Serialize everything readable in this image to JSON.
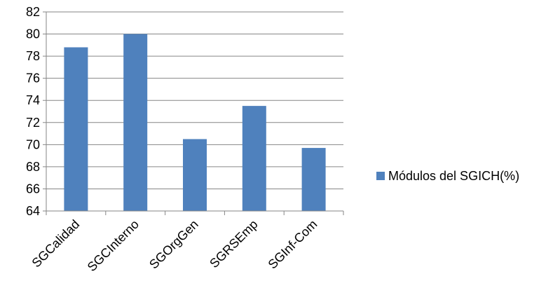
{
  "chart_data": {
    "type": "bar",
    "title": "",
    "xlabel": "",
    "ylabel": "",
    "categories": [
      "SGCalidad",
      "SGCInterno",
      "SGOrgGen",
      "SGRSEmp",
      "SGInf-Com"
    ],
    "series": [
      {
        "name": "Módulos del SGICH(%)",
        "values": [
          78.8,
          80.0,
          70.5,
          73.5,
          69.7
        ],
        "color": "#4F81BD"
      }
    ],
    "ylim": [
      64,
      82
    ],
    "yticks": [
      64,
      66,
      68,
      70,
      72,
      74,
      76,
      78,
      80,
      82
    ],
    "grid": "horizontal",
    "legend": "right"
  }
}
